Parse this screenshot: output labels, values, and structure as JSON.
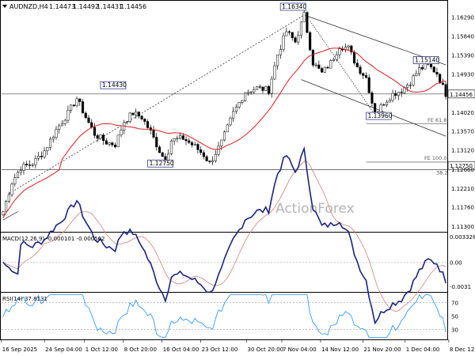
{
  "header": {
    "symbol": "AUDNZD,H4",
    "open": "1.14473",
    "high": "1.14492",
    "low": "1.14431",
    "close": "1.14456"
  },
  "watermark": "ActionForex",
  "colors": {
    "candle": "#000000",
    "ma": "#e01b1b",
    "macd": "#1a237e",
    "macd_signal": "#d08080",
    "rsi": "#1e90ff",
    "trend": "#333333"
  },
  "chart_data": [
    {
      "type": "candlestick",
      "id": "price",
      "y_ticks": [
        "1.16290",
        "1.15840",
        "1.15390",
        "1.14930",
        "1.14020",
        "1.13570",
        "1.13120",
        "1.12660",
        "1.12210",
        "1.11760",
        "1.11300"
      ],
      "ylim": [
        1.113,
        1.1634
      ],
      "last_price": "1.14456",
      "x_labels": [
        "16 Sep 2025",
        "24 Sep 04:00",
        "1 Oct 12:00",
        "8 Oct 20:00",
        "16 Oct 04:00",
        "23 Oct 12:00",
        "30 Oct 20:00",
        "7 Nov 04:00",
        "14 Nov 12:00",
        "21 Nov 20:00",
        "1 Dec 04:00",
        "8 Dec 12:00"
      ],
      "annotations": [
        {
          "label": "1.14430",
          "value": 1.1443
        },
        {
          "label": "1.16340",
          "value": 1.1634
        },
        {
          "label": "1.12750",
          "value": 1.1275
        },
        {
          "label": "1.13960",
          "value": 1.1396
        },
        {
          "label": "1.15140",
          "value": 1.1514
        },
        {
          "label": "1.12750",
          "value": 1.1275
        }
      ],
      "levels": [
        {
          "label": "FE 61.8",
          "value": 1.1375
        },
        {
          "label": "FE 100.0",
          "value": 1.1283
        },
        {
          "label": "38.2",
          "value": 1.1265
        }
      ],
      "price_path": [
        [
          0,
          1.1165
        ],
        [
          3,
          1.1235
        ],
        [
          6,
          1.127
        ],
        [
          10,
          1.128
        ],
        [
          14,
          1.131
        ],
        [
          18,
          1.136
        ],
        [
          22,
          1.14
        ],
        [
          25,
          1.1435
        ],
        [
          28,
          1.139
        ],
        [
          31,
          1.135
        ],
        [
          35,
          1.133
        ],
        [
          38,
          1.1325
        ],
        [
          41,
          1.138
        ],
        [
          44,
          1.14
        ],
        [
          47,
          1.139
        ],
        [
          50,
          1.1355
        ],
        [
          53,
          1.131
        ],
        [
          55,
          1.1285
        ],
        [
          57,
          1.1335
        ],
        [
          61,
          1.134
        ],
        [
          65,
          1.132
        ],
        [
          68,
          1.13
        ],
        [
          70,
          1.128
        ],
        [
          74,
          1.133
        ],
        [
          78,
          1.14
        ],
        [
          82,
          1.145
        ],
        [
          86,
          1.146
        ],
        [
          90,
          1.1455
        ],
        [
          93,
          1.154
        ],
        [
          96,
          1.1595
        ],
        [
          99,
          1.157
        ],
        [
          102,
          1.1634
        ],
        [
          105,
          1.152
        ],
        [
          108,
          1.1495
        ],
        [
          111,
          1.152
        ],
        [
          114,
          1.156
        ],
        [
          117,
          1.1555
        ],
        [
          120,
          1.151
        ],
        [
          123,
          1.1485
        ],
        [
          126,
          1.1396
        ],
        [
          129,
          1.1425
        ],
        [
          132,
          1.1445
        ],
        [
          135,
          1.1455
        ],
        [
          138,
          1.1475
        ],
        [
          141,
          1.1505
        ],
        [
          144,
          1.1514
        ],
        [
          147,
          1.1495
        ],
        [
          150,
          1.1446
        ]
      ]
    },
    {
      "type": "line",
      "id": "macd",
      "label": "MACD(12,26,9)",
      "values_text": "-0.000101 -0.000562",
      "y_ticks": [
        "0.003328",
        "0.00",
        "-0.0031"
      ],
      "ylim": [
        -0.0038,
        0.0038
      ]
    },
    {
      "type": "line",
      "id": "rsi",
      "label": "RSI(14)",
      "value_text": "37.8131",
      "y_ticks": [
        "70",
        "50",
        "30"
      ],
      "ylim": [
        15,
        85
      ]
    }
  ]
}
